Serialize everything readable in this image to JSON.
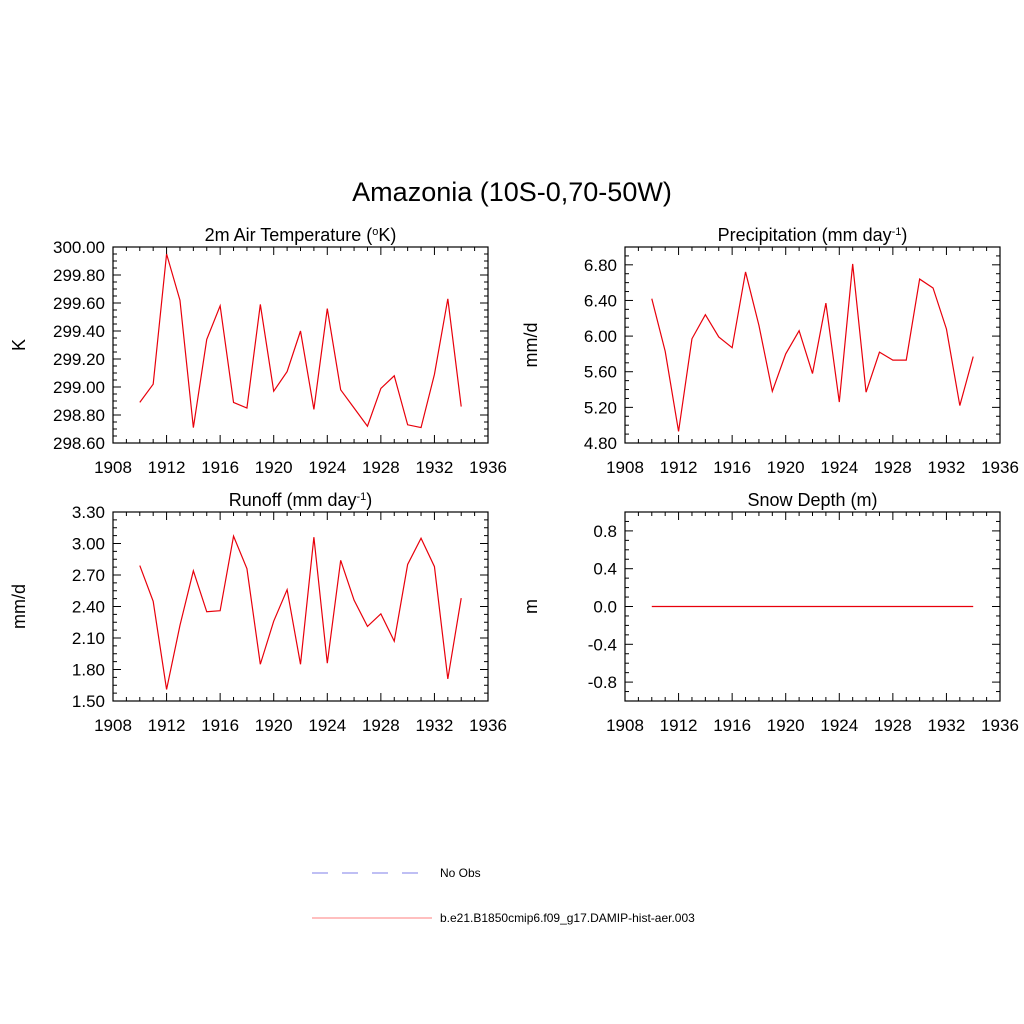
{
  "figure": {
    "title": "Amazonia (10S-0,70-50W)"
  },
  "colors": {
    "model_line": "#e8000b",
    "obs_line": "#9999ee",
    "axis": "#000000"
  },
  "legend": {
    "entries": [
      {
        "label": "No Obs",
        "style": "dashed",
        "color": "#9999ee"
      },
      {
        "label": "b.e21.B1850cmip6.f09_g17.DAMIP-hist-aer.003",
        "style": "solid",
        "color": "#ff9999"
      }
    ]
  },
  "chart_data": [
    {
      "type": "line",
      "title_main": "2m Air Temperature (",
      "title_sup": "o",
      "title_end": "K)",
      "ylabel": "K",
      "xlim": [
        1908,
        1936
      ],
      "ylim": [
        298.6,
        300.0
      ],
      "xticks": [
        1908,
        1912,
        1916,
        1920,
        1924,
        1928,
        1932,
        1936
      ],
      "yticks": [
        298.6,
        298.8,
        299.0,
        299.2,
        299.4,
        299.6,
        299.8,
        300.0
      ],
      "ytick_labels": [
        "298.60",
        "298.80",
        "299.00",
        "299.20",
        "299.40",
        "299.60",
        "299.80",
        "300.00"
      ],
      "series": [
        {
          "x": [
            1910,
            1911,
            1912,
            1913,
            1914,
            1915,
            1916,
            1917,
            1918,
            1919,
            1920,
            1921,
            1922,
            1923,
            1924,
            1925,
            1926,
            1927,
            1928,
            1929,
            1930,
            1931,
            1932,
            1933,
            1934
          ],
          "values": [
            298.89,
            299.02,
            299.95,
            299.62,
            298.71,
            299.34,
            299.58,
            298.89,
            298.85,
            299.59,
            298.97,
            299.11,
            299.4,
            298.84,
            299.56,
            298.98,
            298.85,
            298.72,
            298.99,
            299.08,
            298.73,
            298.71,
            299.09,
            299.63,
            298.86
          ]
        }
      ]
    },
    {
      "type": "line",
      "title_main": "Precipitation (mm day",
      "title_sup": "-1",
      "title_end": ")",
      "ylabel": "mm/d",
      "xlim": [
        1908,
        1936
      ],
      "ylim": [
        4.8,
        7.0
      ],
      "xticks": [
        1908,
        1912,
        1916,
        1920,
        1924,
        1928,
        1932,
        1936
      ],
      "yticks": [
        4.8,
        5.2,
        5.6,
        6.0,
        6.4,
        6.8
      ],
      "ytick_labels": [
        "4.80",
        "5.20",
        "5.60",
        "6.00",
        "6.40",
        "6.80"
      ],
      "series": [
        {
          "x": [
            1910,
            1911,
            1912,
            1913,
            1914,
            1915,
            1916,
            1917,
            1918,
            1919,
            1920,
            1921,
            1922,
            1923,
            1924,
            1925,
            1926,
            1927,
            1928,
            1929,
            1930,
            1931,
            1932,
            1933,
            1934
          ],
          "values": [
            6.42,
            5.83,
            4.93,
            5.97,
            6.24,
            5.99,
            5.87,
            6.72,
            6.12,
            5.38,
            5.8,
            6.06,
            5.58,
            6.37,
            5.26,
            6.81,
            5.37,
            5.82,
            5.73,
            5.73,
            6.64,
            6.54,
            6.08,
            5.22,
            5.77
          ]
        }
      ]
    },
    {
      "type": "line",
      "title_main": "Runoff (mm day",
      "title_sup": "-1",
      "title_end": ")",
      "ylabel": "mm/d",
      "xlim": [
        1908,
        1936
      ],
      "ylim": [
        1.5,
        3.3
      ],
      "xticks": [
        1908,
        1912,
        1916,
        1920,
        1924,
        1928,
        1932,
        1936
      ],
      "yticks": [
        1.5,
        1.8,
        2.1,
        2.4,
        2.7,
        3.0,
        3.3
      ],
      "ytick_labels": [
        "1.50",
        "1.80",
        "2.10",
        "2.40",
        "2.70",
        "3.00",
        "3.30"
      ],
      "series": [
        {
          "x": [
            1910,
            1911,
            1912,
            1913,
            1914,
            1915,
            1916,
            1917,
            1918,
            1919,
            1920,
            1921,
            1922,
            1923,
            1924,
            1925,
            1926,
            1927,
            1928,
            1929,
            1930,
            1931,
            1932,
            1933,
            1934
          ],
          "values": [
            2.79,
            2.45,
            1.61,
            2.22,
            2.74,
            2.35,
            2.36,
            3.07,
            2.76,
            1.85,
            2.26,
            2.56,
            1.85,
            3.06,
            1.86,
            2.84,
            2.46,
            2.21,
            2.33,
            2.07,
            2.8,
            3.05,
            2.78,
            1.71,
            2.48
          ]
        }
      ]
    },
    {
      "type": "line",
      "title_main": "Snow Depth (m)",
      "title_sup": "",
      "title_end": "",
      "ylabel": "m",
      "xlim": [
        1908,
        1936
      ],
      "ylim": [
        -1.0,
        1.0
      ],
      "xticks": [
        1908,
        1912,
        1916,
        1920,
        1924,
        1928,
        1932,
        1936
      ],
      "yticks": [
        -0.8,
        -0.4,
        0.0,
        0.4,
        0.8
      ],
      "ytick_labels": [
        "-0.8",
        "-0.4",
        "0.0",
        "0.4",
        "0.8"
      ],
      "series": [
        {
          "x": [
            1910,
            1911,
            1912,
            1913,
            1914,
            1915,
            1916,
            1917,
            1918,
            1919,
            1920,
            1921,
            1922,
            1923,
            1924,
            1925,
            1926,
            1927,
            1928,
            1929,
            1930,
            1931,
            1932,
            1933,
            1934
          ],
          "values": [
            0,
            0,
            0,
            0,
            0,
            0,
            0,
            0,
            0,
            0,
            0,
            0,
            0,
            0,
            0,
            0,
            0,
            0,
            0,
            0,
            0,
            0,
            0,
            0,
            0
          ]
        }
      ]
    }
  ]
}
